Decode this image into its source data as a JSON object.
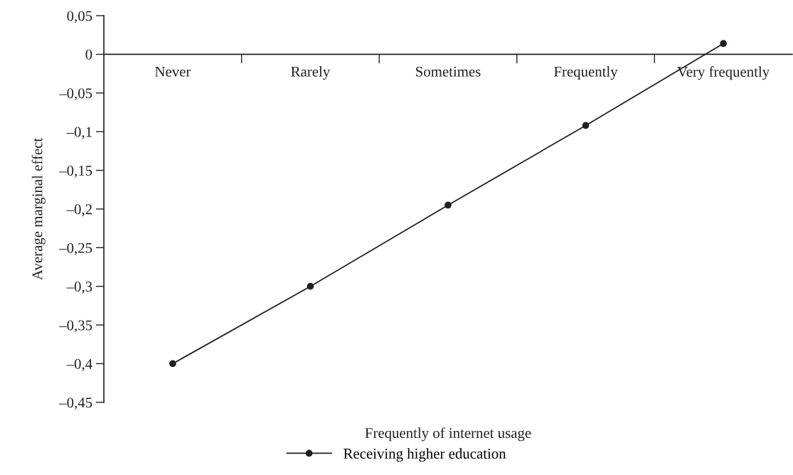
{
  "chart_data": {
    "type": "line",
    "xlabel": "Frequently of internet usage",
    "ylabel": "Average marginal effect",
    "categories": [
      "Never",
      "Rarely",
      "Sometimes",
      "Frequently",
      "Very frequently"
    ],
    "series": [
      {
        "name": "Receiving higher education",
        "color": "#231f20",
        "values": [
          -0.4,
          -0.3,
          -0.195,
          -0.092,
          0.014
        ]
      }
    ],
    "ylim": [
      -0.45,
      0.05
    ],
    "yticks": [
      {
        "value": 0.05,
        "label": "0,05"
      },
      0,
      {
        "value": -0.05,
        "label": "–0,05"
      },
      {
        "value": -0.1,
        "label": "–0,1"
      },
      {
        "value": -0.15,
        "label": "–0,15"
      },
      {
        "value": -0.2,
        "label": "–0,2"
      },
      {
        "value": -0.25,
        "label": "–0,25"
      },
      {
        "value": -0.3,
        "label": "–0,3"
      },
      {
        "value": -0.35,
        "label": "–0,35"
      },
      {
        "value": -0.4,
        "label": "–0,4"
      },
      {
        "value": -0.45,
        "label": "–0,45"
      }
    ],
    "grid": false,
    "legend": "bottom",
    "marker": "circle",
    "line_style": "solid"
  }
}
